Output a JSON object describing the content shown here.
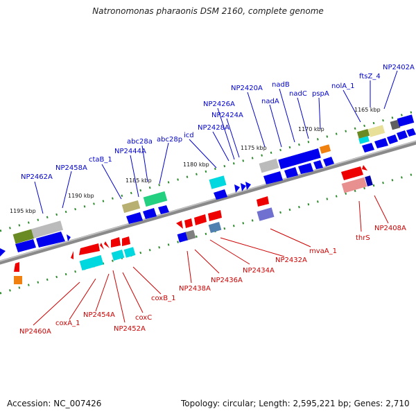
{
  "title": "Natronomonas pharaonis DSM 2160, complete genome",
  "footer": {
    "accession": "Accession: NC_007426",
    "summary": "Topology: circular; Length: 2,595,221 bp; Genes: 2,710"
  },
  "colors": {
    "backbone": "#808080",
    "label_forward": "#0000cc",
    "label_reverse": "#cc0000",
    "tick_mark": "#2e8b2e",
    "gene_blue": "#0000ee",
    "gene_red": "#ee0000",
    "gene_cyan": "#00d8e0",
    "gene_grey": "#bbbbbb",
    "gene_olive": "#6a8a24",
    "gene_khaki": "#b8b070",
    "gene_green": "#22d080",
    "gene_lightyellow": "#e8e098",
    "gene_pink": "#e89090",
    "gene_purple": "#7070d0",
    "gene_steel": "#5080b0",
    "gene_orange": "#f08010",
    "gene_darkgrey": "#606060"
  },
  "scale_labels": [
    "1195 kbp",
    "1190 kbp",
    "1185 kbp",
    "1180 kbp",
    "1175 kbp",
    "1170 kbp",
    "1165 kbp"
  ],
  "forward_labels": [
    "NP2462A",
    "NP2458A",
    "ctaB_1",
    "NP2444A",
    "abc28a",
    "abc28p",
    "icd",
    "NP2428A",
    "NP2426A",
    "NP2424A",
    "NP2420A",
    "nadA",
    "nadB",
    "nadC",
    "pspA",
    "nolA_1",
    "ftsZ_4",
    "NP2402A"
  ],
  "reverse_labels": [
    "NP2460A",
    "coxA_1",
    "NP2454A",
    "NP2452A",
    "coxC",
    "coxB_1",
    "NP2438A",
    "NP2436A",
    "NP2434A",
    "NP2432A",
    "mvaA_1",
    "thrS",
    "NP2408A"
  ]
}
